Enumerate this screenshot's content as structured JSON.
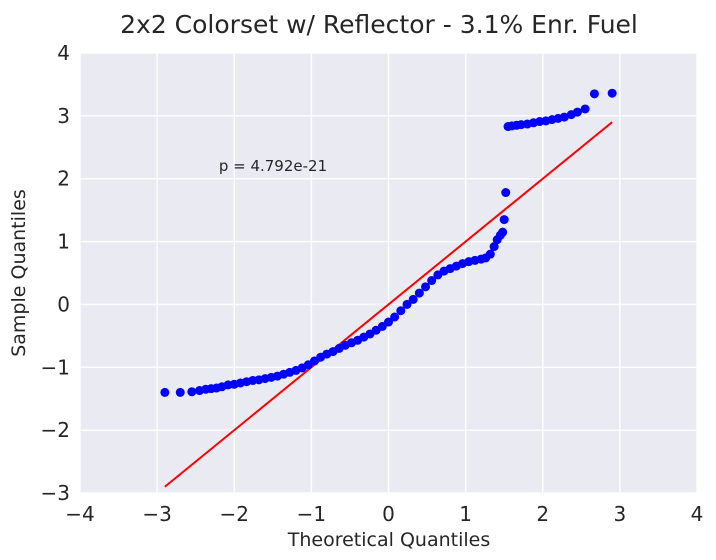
{
  "chart_data": {
    "type": "scatter",
    "title": "2x2 Colorset w/ Reflector - 3.1% Enr. Fuel",
    "xlabel": "Theoretical Quantiles",
    "ylabel": "Sample Quantiles",
    "xlim": [
      -4,
      4
    ],
    "ylim": [
      -3,
      4
    ],
    "xticks": [
      -4,
      -3,
      -2,
      -1,
      0,
      1,
      2,
      3,
      4
    ],
    "yticks": [
      -3,
      -2,
      -1,
      0,
      1,
      2,
      3,
      4
    ],
    "xtick_labels": [
      "−4",
      "−3",
      "−2",
      "−1",
      "0",
      "1",
      "2",
      "3",
      "4"
    ],
    "ytick_labels": [
      "−3",
      "−2",
      "−1",
      "0",
      "1",
      "2",
      "3",
      "4"
    ],
    "grid": true,
    "annotation": {
      "text": "p = 4.792e-21",
      "x": -2.2,
      "y": 2.2
    },
    "colors": {
      "background": "#eaeaf2",
      "grid": "#ffffff",
      "points": "#0000ff",
      "line": "#ff0000"
    },
    "reference_line": {
      "x": [
        -2.9,
        2.9
      ],
      "y": [
        -2.9,
        2.9
      ]
    },
    "points": [
      {
        "x": -2.9,
        "y": -1.4
      },
      {
        "x": -2.7,
        "y": -1.4
      },
      {
        "x": -2.55,
        "y": -1.39
      },
      {
        "x": -2.45,
        "y": -1.37
      },
      {
        "x": -2.37,
        "y": -1.35
      },
      {
        "x": -2.3,
        "y": -1.34
      },
      {
        "x": -2.23,
        "y": -1.33
      },
      {
        "x": -2.16,
        "y": -1.31
      },
      {
        "x": -2.08,
        "y": -1.28
      },
      {
        "x": -2.0,
        "y": -1.27
      },
      {
        "x": -1.92,
        "y": -1.25
      },
      {
        "x": -1.84,
        "y": -1.23
      },
      {
        "x": -1.76,
        "y": -1.21
      },
      {
        "x": -1.68,
        "y": -1.2
      },
      {
        "x": -1.6,
        "y": -1.18
      },
      {
        "x": -1.52,
        "y": -1.16
      },
      {
        "x": -1.44,
        "y": -1.14
      },
      {
        "x": -1.36,
        "y": -1.11
      },
      {
        "x": -1.28,
        "y": -1.08
      },
      {
        "x": -1.2,
        "y": -1.05
      },
      {
        "x": -1.12,
        "y": -1.01
      },
      {
        "x": -1.04,
        "y": -0.96
      },
      {
        "x": -0.96,
        "y": -0.9
      },
      {
        "x": -0.88,
        "y": -0.84
      },
      {
        "x": -0.8,
        "y": -0.79
      },
      {
        "x": -0.72,
        "y": -0.75
      },
      {
        "x": -0.64,
        "y": -0.7
      },
      {
        "x": -0.56,
        "y": -0.65
      },
      {
        "x": -0.48,
        "y": -0.61
      },
      {
        "x": -0.4,
        "y": -0.57
      },
      {
        "x": -0.32,
        "y": -0.52
      },
      {
        "x": -0.24,
        "y": -0.47
      },
      {
        "x": -0.16,
        "y": -0.41
      },
      {
        "x": -0.08,
        "y": -0.35
      },
      {
        "x": 0.0,
        "y": -0.28
      },
      {
        "x": 0.08,
        "y": -0.2
      },
      {
        "x": 0.16,
        "y": -0.1
      },
      {
        "x": 0.24,
        "y": 0.0
      },
      {
        "x": 0.32,
        "y": 0.08
      },
      {
        "x": 0.4,
        "y": 0.18
      },
      {
        "x": 0.48,
        "y": 0.28
      },
      {
        "x": 0.56,
        "y": 0.38
      },
      {
        "x": 0.64,
        "y": 0.47
      },
      {
        "x": 0.72,
        "y": 0.53
      },
      {
        "x": 0.8,
        "y": 0.57
      },
      {
        "x": 0.88,
        "y": 0.61
      },
      {
        "x": 0.96,
        "y": 0.65
      },
      {
        "x": 1.04,
        "y": 0.68
      },
      {
        "x": 1.12,
        "y": 0.7
      },
      {
        "x": 1.2,
        "y": 0.72
      },
      {
        "x": 1.26,
        "y": 0.74
      },
      {
        "x": 1.32,
        "y": 0.8
      },
      {
        "x": 1.37,
        "y": 0.92
      },
      {
        "x": 1.41,
        "y": 1.03
      },
      {
        "x": 1.45,
        "y": 1.1
      },
      {
        "x": 1.48,
        "y": 1.15
      },
      {
        "x": 1.5,
        "y": 1.35
      },
      {
        "x": 1.52,
        "y": 1.78
      },
      {
        "x": 1.55,
        "y": 2.83
      },
      {
        "x": 1.6,
        "y": 2.84
      },
      {
        "x": 1.66,
        "y": 2.85
      },
      {
        "x": 1.72,
        "y": 2.86
      },
      {
        "x": 1.8,
        "y": 2.87
      },
      {
        "x": 1.88,
        "y": 2.89
      },
      {
        "x": 1.96,
        "y": 2.91
      },
      {
        "x": 2.04,
        "y": 2.92
      },
      {
        "x": 2.12,
        "y": 2.94
      },
      {
        "x": 2.2,
        "y": 2.96
      },
      {
        "x": 2.28,
        "y": 2.98
      },
      {
        "x": 2.37,
        "y": 3.02
      },
      {
        "x": 2.45,
        "y": 3.06
      },
      {
        "x": 2.55,
        "y": 3.11
      },
      {
        "x": 2.67,
        "y": 3.35
      },
      {
        "x": 2.9,
        "y": 3.36
      }
    ]
  }
}
